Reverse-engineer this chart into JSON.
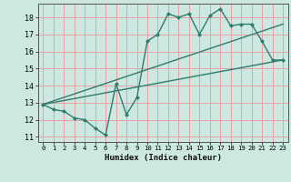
{
  "title": "",
  "xlabel": "Humidex (Indice chaleur)",
  "ylabel": "",
  "background_color": "#cce8e0",
  "grid_color": "#e8a0a8",
  "line_color": "#2e7d6e",
  "xlim": [
    -0.5,
    23.5
  ],
  "ylim": [
    10.7,
    18.8
  ],
  "xticks": [
    0,
    1,
    2,
    3,
    4,
    5,
    6,
    7,
    8,
    9,
    10,
    11,
    12,
    13,
    14,
    15,
    16,
    17,
    18,
    19,
    20,
    21,
    22,
    23
  ],
  "yticks": [
    11,
    12,
    13,
    14,
    15,
    16,
    17,
    18
  ],
  "zigzag_x": [
    0,
    1,
    2,
    3,
    4,
    5,
    6,
    7,
    8,
    9,
    10,
    11,
    12,
    13,
    14,
    15,
    16,
    17,
    18,
    19,
    20,
    21,
    22,
    23
  ],
  "zigzag_y": [
    12.9,
    12.6,
    12.5,
    12.1,
    12.0,
    11.5,
    11.1,
    14.1,
    12.3,
    13.3,
    16.6,
    17.0,
    18.2,
    18.0,
    18.2,
    17.0,
    18.1,
    18.5,
    17.5,
    17.6,
    17.6,
    16.6,
    15.5,
    15.5
  ],
  "line1_x": [
    0,
    23
  ],
  "line1_y": [
    12.9,
    15.5
  ],
  "line2_x": [
    0,
    23
  ],
  "line2_y": [
    12.9,
    17.6
  ]
}
